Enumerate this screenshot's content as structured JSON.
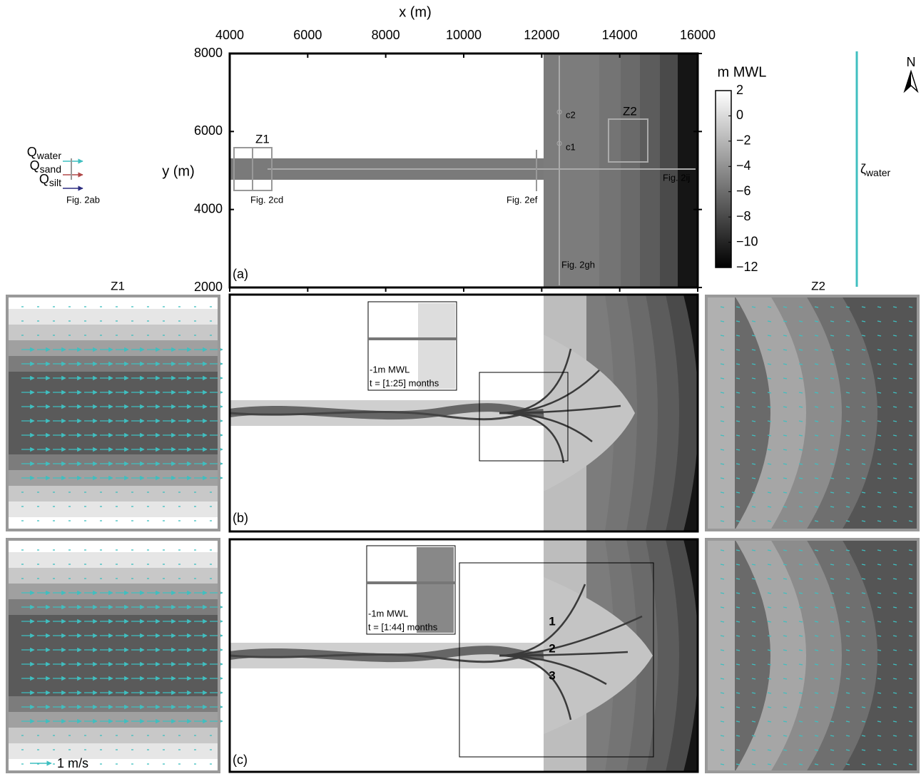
{
  "chart_data": {
    "type": "bathymetry",
    "x_label": "x (m)",
    "y_label": "y (m)",
    "xlim": [
      4000,
      16000
    ],
    "ylim": [
      2000,
      8000
    ],
    "xticks": [
      4000,
      6000,
      8000,
      10000,
      12000,
      14000,
      16000
    ],
    "yticks": [
      2000,
      4000,
      6000,
      8000
    ],
    "colorbar": {
      "label": "m MWL",
      "lim": [
        -12,
        2
      ],
      "ticks": [
        2,
        0,
        {
          "value": -2,
          "label": "−2"
        },
        {
          "value": -4,
          "label": "−4"
        },
        {
          "value": -6,
          "label": "−6"
        },
        {
          "value": -8,
          "label": "−8"
        },
        {
          "value": -10,
          "label": "−10"
        },
        {
          "value": -12,
          "label": "−12"
        }
      ]
    },
    "panel_labels": [
      "(a)",
      "(b)",
      "(c)"
    ],
    "zoom_labels": [
      "Z1",
      "Z2"
    ],
    "section_labels": [
      "Fig. 2ab",
      "Fig. 2cd",
      "Fig. 2ef",
      "Fig. 2gh",
      "Fig. 2ij"
    ],
    "station_labels": [
      "c1",
      "c2"
    ],
    "legend": [
      {
        "symbol": "Q",
        "subscript": "water",
        "color": "#3fbfc0"
      },
      {
        "symbol": "Q",
        "subscript": "sand",
        "color": "#b04848"
      },
      {
        "symbol": "Q",
        "subscript": "silt",
        "color": "#2c2c80"
      }
    ],
    "water_level_label": {
      "symbol": "ζ",
      "subscript": "water",
      "color": "#3fbfc0"
    },
    "north_label": "N",
    "insets": [
      {
        "contour_label": "-1m MWL",
        "time_label": "t = [1:25] months"
      },
      {
        "contour_label": "-1m MWL",
        "time_label": "t = [1:44] months"
      }
    ],
    "channel_labels": [
      "1",
      "2",
      "3"
    ],
    "scale_arrow_label": "1 m/s"
  }
}
